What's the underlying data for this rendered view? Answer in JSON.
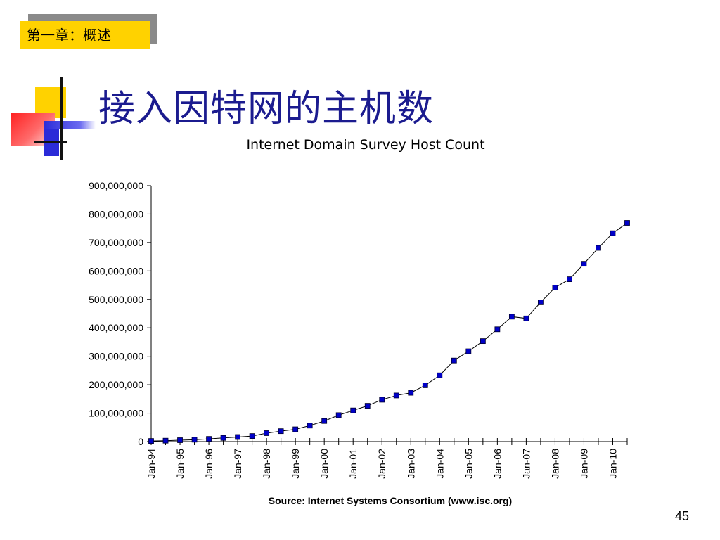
{
  "slide": {
    "chapter_tag": "第一章：概述",
    "title": "接入因特网的主机数",
    "page_number": "45"
  },
  "chart_data": {
    "type": "line",
    "title": "Internet Domain Survey Host Count",
    "source": "Source: Internet Systems Consortium (www.isc.org)",
    "xlabel": "",
    "ylabel": "",
    "ylim": [
      0,
      900000000
    ],
    "yticks": [
      0,
      100000000,
      200000000,
      300000000,
      400000000,
      500000000,
      600000000,
      700000000,
      800000000,
      900000000
    ],
    "ytick_labels": [
      "0",
      "100,000,000",
      "200,000,000",
      "300,000,000",
      "400,000,000",
      "500,000,000",
      "600,000,000",
      "700,000,000",
      "800,000,000",
      "900,000,000"
    ],
    "xtick_labels": [
      "Jan-94",
      "Jan-95",
      "Jan-96",
      "Jan-97",
      "Jan-98",
      "Jan-99",
      "Jan-00",
      "Jan-01",
      "Jan-02",
      "Jan-03",
      "Jan-04",
      "Jan-05",
      "Jan-06",
      "Jan-07",
      "Jan-08",
      "Jan-09",
      "Jan-10"
    ],
    "grid": false,
    "legend": "none",
    "series_color": "#0000c8",
    "line_color": "#000000",
    "x": [
      "Jan-94",
      "Jul-94",
      "Jan-95",
      "Jul-95",
      "Jan-96",
      "Jul-96",
      "Jan-97",
      "Jul-97",
      "Jan-98",
      "Jul-98",
      "Jan-99",
      "Jul-99",
      "Jan-00",
      "Jul-00",
      "Jan-01",
      "Jul-01",
      "Jan-02",
      "Jul-02",
      "Jan-03",
      "Jul-03",
      "Jan-04",
      "Jul-04",
      "Jan-05",
      "Jul-05",
      "Jan-06",
      "Jul-06",
      "Jan-07",
      "Jul-07",
      "Jan-08",
      "Jul-08",
      "Jan-09",
      "Jul-09",
      "Jan-10",
      "Jul-10"
    ],
    "values": [
      2200000,
      3200000,
      4900000,
      6600000,
      9500000,
      12900000,
      16100000,
      19500000,
      29700000,
      36700000,
      43200000,
      56200000,
      72400000,
      93000000,
      109600000,
      125900000,
      147300000,
      162100000,
      171600000,
      198000000,
      233100000,
      285100000,
      317600000,
      353300000,
      394900000,
      439300000,
      433200000,
      489800000,
      541700000,
      570900000,
      625200000,
      681100000,
      732700000,
      768900000
    ]
  }
}
